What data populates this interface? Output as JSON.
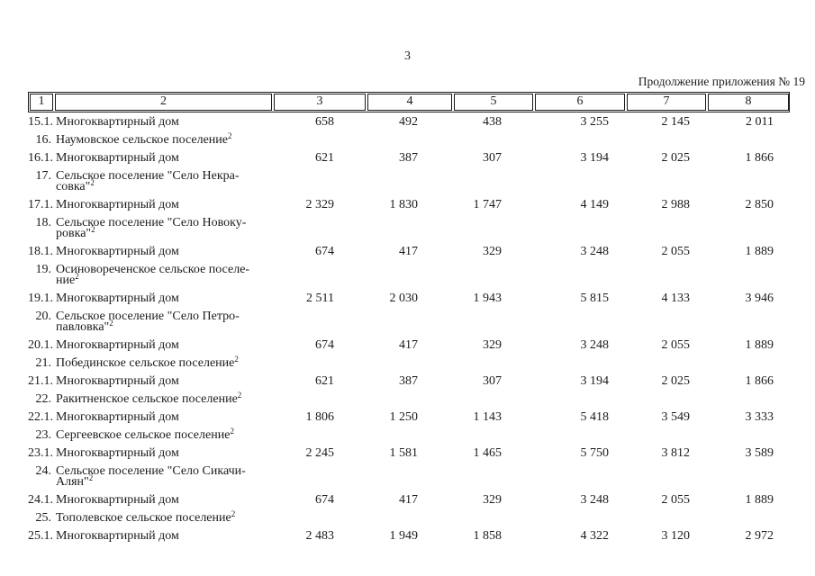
{
  "page": {
    "number": "3",
    "continuation": "Продолжение приложения № 19"
  },
  "colors": {
    "text": "#1b1b1b",
    "border": "#1b1b1b",
    "background": "#ffffff"
  },
  "table": {
    "header": [
      "1",
      "2",
      "3",
      "4",
      "5",
      "6",
      "7",
      "8"
    ],
    "rows": [
      {
        "num": "15.1.",
        "label": "Многоквартирный дом",
        "values": [
          "658",
          "492",
          "438",
          "3 255",
          "2 145",
          "2 011"
        ]
      },
      {
        "num": "16.",
        "label": "Наумовское сельское поселение",
        "sup": "2"
      },
      {
        "num": "16.1.",
        "label": "Многоквартирный дом",
        "values": [
          "621",
          "387",
          "307",
          "3 194",
          "2 025",
          "1 866"
        ]
      },
      {
        "num": "17.",
        "label": "Сельское поселение \"Село Некра-\nсовка\"",
        "sup": "2"
      },
      {
        "num": "17.1.",
        "label": "Многоквартирный дом",
        "values": [
          "2 329",
          "1 830",
          "1 747",
          "4 149",
          "2 988",
          "2 850"
        ]
      },
      {
        "num": "18.",
        "label": "Сельское поселение \"Село Новоку-\nровка\"",
        "sup": "2"
      },
      {
        "num": "18.1.",
        "label": "Многоквартирный дом",
        "values": [
          "674",
          "417",
          "329",
          "3 248",
          "2 055",
          "1 889"
        ]
      },
      {
        "num": "19.",
        "label": "Осиновореченское сельское поселе-\nние",
        "sup": "2"
      },
      {
        "num": "19.1.",
        "label": "Многоквартирный дом",
        "values": [
          "2 511",
          "2 030",
          "1 943",
          "5 815",
          "4 133",
          "3 946"
        ]
      },
      {
        "num": "20.",
        "label": "Сельское поселение \"Село Петро-\nпавловка\"",
        "sup": "2"
      },
      {
        "num": "20.1.",
        "label": "Многоквартирный дом",
        "values": [
          "674",
          "417",
          "329",
          "3 248",
          "2 055",
          "1 889"
        ]
      },
      {
        "num": "21.",
        "label": "Побединское сельское поселение",
        "sup": "2"
      },
      {
        "num": "21.1.",
        "label": "Многоквартирный дом",
        "values": [
          "621",
          "387",
          "307",
          "3 194",
          "2 025",
          "1 866"
        ]
      },
      {
        "num": "22.",
        "label": "Ракитненское сельское поселение",
        "sup": "2"
      },
      {
        "num": "22.1.",
        "label": "Многоквартирный дом",
        "values": [
          "1 806",
          "1 250",
          "1 143",
          "5 418",
          "3 549",
          "3 333"
        ]
      },
      {
        "num": "23.",
        "label": "Сергеевское сельское поселение",
        "sup": "2"
      },
      {
        "num": "23.1.",
        "label": "Многоквартирный дом",
        "values": [
          "2 245",
          "1 581",
          "1 465",
          "5 750",
          "3 812",
          "3 589"
        ]
      },
      {
        "num": "24.",
        "label": "Сельское поселение \"Село Сикачи-\nАлян\"",
        "sup": "2"
      },
      {
        "num": "24.1.",
        "label": "Многоквартирный дом",
        "values": [
          "674",
          "417",
          "329",
          "3 248",
          "2 055",
          "1 889"
        ]
      },
      {
        "num": "25.",
        "label": "Тополевское сельское поселение",
        "sup": "2"
      },
      {
        "num": "25.1.",
        "label": "Многоквартирный дом",
        "values": [
          "2 483",
          "1 949",
          "1 858",
          "4 322",
          "3 120",
          "2 972"
        ]
      }
    ]
  }
}
